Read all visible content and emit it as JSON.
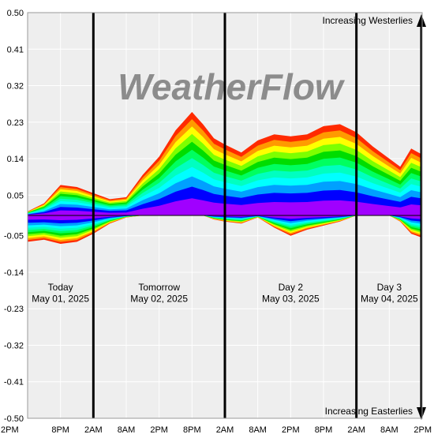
{
  "chart_data": {
    "type": "area",
    "title": "",
    "xlabel": "",
    "ylabel": "",
    "ylim": [
      -0.5,
      0.5
    ],
    "y_ticks": [
      "0.50",
      "0.41",
      "0.32",
      "0.23",
      "0.14",
      "0.05",
      "-0.05",
      "-0.14",
      "-0.23",
      "-0.32",
      "-0.41",
      "-0.50"
    ],
    "x_ticks": [
      "2PM",
      "8PM",
      "2AM",
      "8AM",
      "2PM",
      "8PM",
      "2AM",
      "8AM",
      "2PM",
      "8PM",
      "2AM",
      "8AM",
      "2PM"
    ],
    "x_hours": [
      0,
      6,
      12,
      18,
      24,
      30,
      36,
      42,
      48,
      54,
      60,
      66,
      72
    ],
    "grid": true,
    "background_color": "#eeeeee",
    "watermark": "WeatherFlow",
    "top_annotation": "Increasing Westerlies",
    "bottom_annotation": "Increasing Easterlies",
    "day_labels": [
      {
        "name": "Today",
        "date": "May 01, 2025",
        "center_hour": 6
      },
      {
        "name": "Tomorrow",
        "date": "May 02, 2025",
        "center_hour": 24
      },
      {
        "name": "Day 2",
        "date": "May 03, 2025",
        "center_hour": 48
      },
      {
        "name": "Day 3",
        "date": "May 04, 2025",
        "center_hour": 66
      }
    ],
    "day_boundaries_hours": [
      12,
      36,
      60
    ],
    "band_colors": [
      "#ff2a00",
      "#ff9a00",
      "#ffff00",
      "#7dff00",
      "#00dd00",
      "#00ff60",
      "#00ffc0",
      "#00ffff",
      "#00a0ff",
      "#0000ff",
      "#a000ff"
    ],
    "series": [
      {
        "hours": [
          0,
          3,
          6,
          9,
          12,
          15,
          18,
          21,
          24,
          27,
          30,
          32,
          34,
          36,
          39,
          42,
          45,
          48,
          51,
          54,
          57,
          60,
          63,
          66,
          68,
          70,
          72
        ],
        "top": [
          0.01,
          0.03,
          0.075,
          0.07,
          0.055,
          0.04,
          0.045,
          0.1,
          0.145,
          0.21,
          0.255,
          0.225,
          0.19,
          0.175,
          0.155,
          0.185,
          0.2,
          0.195,
          0.2,
          0.22,
          0.225,
          0.205,
          0.17,
          0.14,
          0.12,
          0.165,
          0.15
        ],
        "bottom": [
          -0.065,
          -0.06,
          -0.07,
          -0.065,
          -0.045,
          -0.02,
          -0.005,
          0,
          0,
          0,
          0,
          0,
          -0.01,
          -0.015,
          -0.02,
          -0.005,
          -0.03,
          -0.05,
          -0.035,
          -0.025,
          -0.015,
          0,
          0,
          0,
          -0.015,
          -0.045,
          -0.055
        ]
      }
    ]
  }
}
